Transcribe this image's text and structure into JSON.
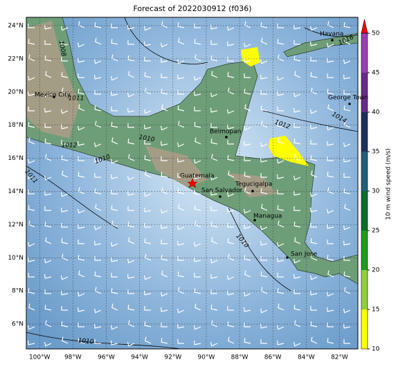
{
  "title": "Forecast of 2022030912 (f036)",
  "map": {
    "xlim": [
      -100.8,
      -80.9
    ],
    "ylim": [
      4.5,
      24.5
    ],
    "lat_ticks": [
      {
        "value": 6,
        "label": "6°N"
      },
      {
        "value": 8,
        "label": "8°N"
      },
      {
        "value": 10,
        "label": "10°N"
      },
      {
        "value": 12,
        "label": "12°N"
      },
      {
        "value": 14,
        "label": "14°N"
      },
      {
        "value": 16,
        "label": "16°N"
      },
      {
        "value": 18,
        "label": "18°N"
      },
      {
        "value": 20,
        "label": "20°N"
      },
      {
        "value": 22,
        "label": "22°N"
      },
      {
        "value": 24,
        "label": "24°N"
      }
    ],
    "lon_ticks": [
      {
        "value": -100,
        "label": "100°W"
      },
      {
        "value": -98,
        "label": "98°W"
      },
      {
        "value": -96,
        "label": "96°W"
      },
      {
        "value": -94,
        "label": "94°W"
      },
      {
        "value": -92,
        "label": "92°W"
      },
      {
        "value": -90,
        "label": "90°W"
      },
      {
        "value": -88,
        "label": "88°W"
      },
      {
        "value": -86,
        "label": "86°W"
      },
      {
        "value": -84,
        "label": "84°W"
      },
      {
        "value": -82,
        "label": "82°W"
      }
    ],
    "cities": [
      "Havana",
      "George Town",
      "Mexico City",
      "Belmopan",
      "Guatemala",
      "San Salvador",
      "Tegucigalpa",
      "Managua",
      "San Jose"
    ],
    "isobar_labels": [
      1016,
      1014,
      1012,
      1010,
      1010,
      1011,
      1008,
      1011,
      1010,
      1010,
      1012
    ]
  },
  "colorbar": {
    "label": "10 m wind speed (m/s)",
    "ticks": [
      10,
      15,
      20,
      25,
      30,
      35,
      40,
      45,
      50
    ],
    "colors": [
      "#ffff00",
      "#8fd13a",
      "#1a9e1a",
      "#0b6e2a",
      "#1f5f7a",
      "#1c2f5c",
      "#6a2a8a",
      "#9b3fb5"
    ],
    "extend_color": "#ff0000"
  }
}
